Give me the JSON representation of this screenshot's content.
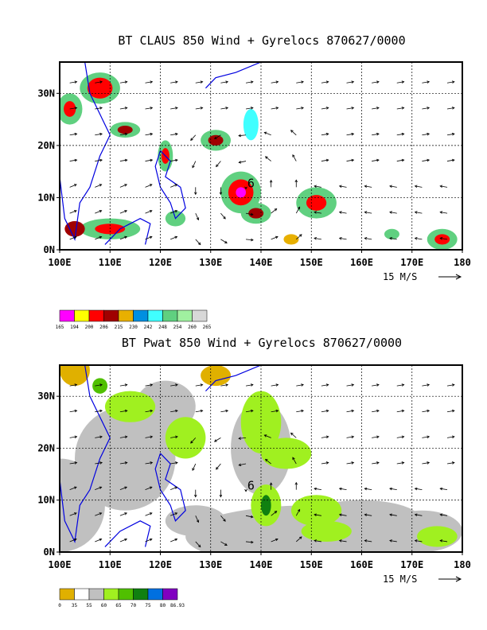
{
  "chart_data": [
    {
      "type": "heatmap",
      "title": "BT CLAUS 850 Wind + Gyrelocs 870627/0000",
      "x_ticks": [
        "100E",
        "110E",
        "120E",
        "130E",
        "140E",
        "150E",
        "160E",
        "170E",
        "180"
      ],
      "y_ticks": [
        "0N",
        "10N",
        "20N",
        "30N"
      ],
      "xlim": [
        100,
        180
      ],
      "ylim": [
        0,
        36
      ],
      "reference_vector": "15 M/S",
      "gyre_marker": {
        "label": "6",
        "lon": 138,
        "lat": 12
      },
      "colorbar": {
        "colors": [
          "#ff00ff",
          "#ffff00",
          "#ff0000",
          "#a00000",
          "#e8b000",
          "#0090e0",
          "#40ffff",
          "#60d080",
          "#a0f0a0",
          "#d8d8d8"
        ],
        "labels": [
          "165",
          "194",
          "200",
          "206",
          "215",
          "230",
          "242",
          "248",
          "254",
          "260",
          "265"
        ]
      }
    },
    {
      "type": "heatmap",
      "title": "BT Pwat 850 Wind + Gyrelocs 870627/0000",
      "x_ticks": [
        "100E",
        "110E",
        "120E",
        "130E",
        "140E",
        "150E",
        "160E",
        "170E",
        "180"
      ],
      "y_ticks": [
        "0N",
        "10N",
        "20N",
        "30N"
      ],
      "xlim": [
        100,
        180
      ],
      "ylim": [
        0,
        36
      ],
      "reference_vector": "15 M/S",
      "gyre_marker": {
        "label": "6",
        "lon": 138,
        "lat": 12
      },
      "colorbar": {
        "colors": [
          "#e0b000",
          "#ffffff",
          "#c0c0c0",
          "#a0f020",
          "#50c000",
          "#108010",
          "#0070e0",
          "#8000c0"
        ],
        "labels": [
          "0",
          "35",
          "55",
          "60",
          "65",
          "70",
          "75",
          "80",
          "86.93"
        ]
      }
    }
  ]
}
